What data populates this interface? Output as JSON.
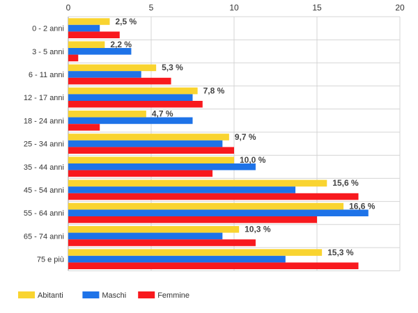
{
  "chart_data": {
    "type": "bar",
    "orientation": "horizontal",
    "categories": [
      "0 - 2 anni",
      "3 - 5 anni",
      "6 - 11 anni",
      "12 - 17 anni",
      "18 - 24 anni",
      "25 - 34 anni",
      "35 - 44 anni",
      "45 - 54 anni",
      "55 - 64 anni",
      "65 - 74 anni",
      "75 e più"
    ],
    "series": [
      {
        "name": "Abitanti",
        "color": "#F9D430",
        "values": [
          2.5,
          2.2,
          5.3,
          7.8,
          4.7,
          9.7,
          10.0,
          15.6,
          16.6,
          10.3,
          15.3
        ]
      },
      {
        "name": "Maschi",
        "color": "#1E73E8",
        "values": [
          1.9,
          3.8,
          4.4,
          7.5,
          7.5,
          9.3,
          11.3,
          13.7,
          18.1,
          9.3,
          13.1
        ]
      },
      {
        "name": "Femmine",
        "color": "#F8191E",
        "values": [
          3.1,
          0.6,
          6.2,
          8.1,
          1.9,
          10.0,
          8.7,
          17.5,
          15.0,
          11.3,
          17.5
        ]
      }
    ],
    "data_labels": [
      "2,5 %",
      "2,2 %",
      "5,3 %",
      "7,8 %",
      "4,7 %",
      "9,7 %",
      "10,0 %",
      "15,6 %",
      "16,6 %",
      "10,3 %",
      "15,3 %"
    ],
    "x_ticks": [
      "0",
      "5",
      "10",
      "15",
      "20"
    ],
    "xlim": [
      0,
      20
    ],
    "grid": true,
    "legend_position": "bottom-left"
  }
}
